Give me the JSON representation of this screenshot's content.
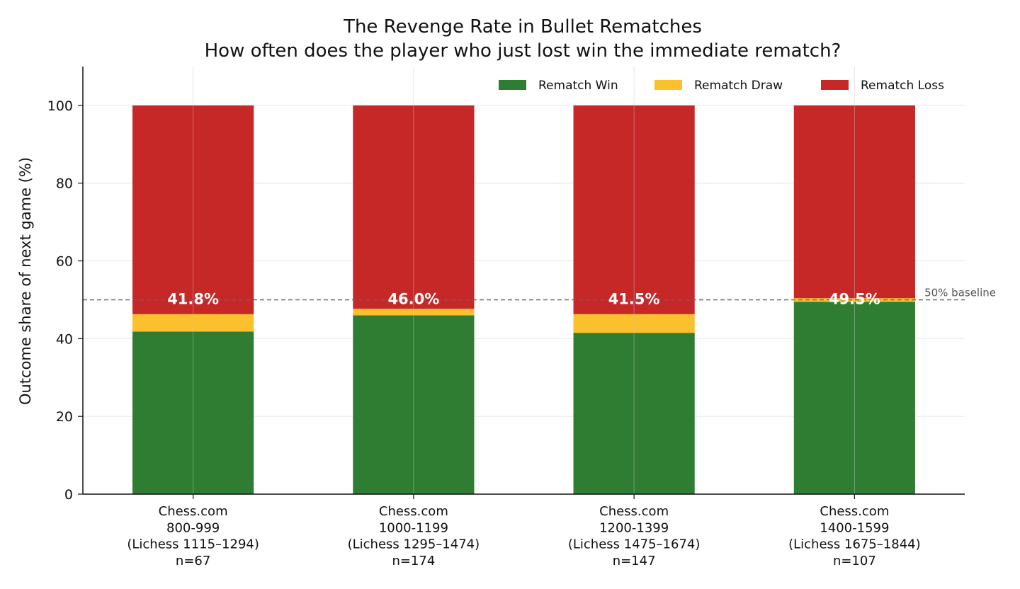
{
  "chart_data": {
    "type": "bar",
    "stacked": true,
    "title": "The Revenge Rate in Bullet Rematches",
    "subtitle": "How often does the player who just lost win the immediate rematch?",
    "xlabel": "",
    "ylabel": "Outcome share of next game (%)",
    "ylim": [
      0,
      110
    ],
    "yticks": [
      "0",
      "20",
      "40",
      "60",
      "80",
      "100"
    ],
    "grid": true,
    "legend_position": "top-right",
    "categories": [
      {
        "line1": "Chess.com",
        "line2": "800-999",
        "line3": "(Lichess 1115–1294)",
        "line4": "n=67"
      },
      {
        "line1": "Chess.com",
        "line2": "1000-1199",
        "line3": "(Lichess 1295–1474)",
        "line4": "n=174"
      },
      {
        "line1": "Chess.com",
        "line2": "1200-1399",
        "line3": "(Lichess 1475–1674)",
        "line4": "n=147"
      },
      {
        "line1": "Chess.com",
        "line2": "1400-1599",
        "line3": "(Lichess 1675–1844)",
        "line4": "n=107"
      }
    ],
    "series": [
      {
        "name": "Rematch Win",
        "color": "#2e7d32",
        "values": [
          41.8,
          46.0,
          41.5,
          49.5
        ]
      },
      {
        "name": "Rematch Draw",
        "color": "#fbc02d",
        "values": [
          4.5,
          1.7,
          4.8,
          0.9
        ]
      },
      {
        "name": "Rematch Loss",
        "color": "#c62828",
        "values": [
          53.7,
          52.3,
          53.7,
          49.6
        ]
      }
    ],
    "data_labels": [
      "41.8%",
      "46.0%",
      "41.5%",
      "49.5%"
    ],
    "baseline": {
      "value": 50,
      "label": "50% baseline",
      "color": "#666666"
    }
  }
}
